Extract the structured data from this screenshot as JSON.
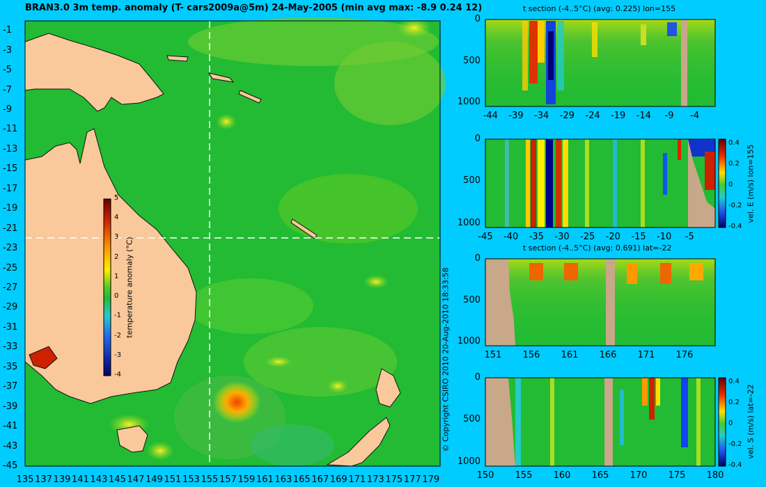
{
  "main_map": {
    "title": "BRAN3.0 3m temp. anomaly (T- cars2009a@5m) 24-May-2005 (min avg max: -8.9 0.24 12)",
    "x_ticks": [
      "135",
      "137",
      "139",
      "141",
      "143",
      "145",
      "147",
      "149",
      "151",
      "153",
      "155",
      "157",
      "159",
      "161",
      "163",
      "165",
      "167",
      "169",
      "171",
      "173",
      "175",
      "177",
      "179"
    ],
    "y_ticks": [
      "-1",
      "-3",
      "-5",
      "-7",
      "-9",
      "-11",
      "-13",
      "-15",
      "-17",
      "-19",
      "-21",
      "-23",
      "-25",
      "-27",
      "-29",
      "-31",
      "-33",
      "-35",
      "-37",
      "-39",
      "-41",
      "-43",
      "-45"
    ],
    "crosshair": {
      "lon": 155,
      "lat": -22
    },
    "colorbar": {
      "label": "temperature anomaly (°C)",
      "ticks": [
        "5",
        "4",
        "3",
        "2",
        "1",
        "0",
        "-1",
        "-2",
        "-3",
        "-4"
      ]
    }
  },
  "copyright": "© Copyright CSIRO 2010   20-Aug-2010 18:33:58",
  "panels": [
    {
      "title": "t section (-4..5°C) (avg: 0.225) lon=155",
      "x_ticks": [
        "-44",
        "-39",
        "-34",
        "-29",
        "-24",
        "-19",
        "-14",
        "-9",
        "-4"
      ],
      "y_ticks": [
        "0",
        "500",
        "1000"
      ]
    },
    {
      "title": "",
      "x_ticks": [
        "-45",
        "-40",
        "-35",
        "-30",
        "-25",
        "-20",
        "-15",
        "-10",
        "-5"
      ],
      "y_ticks": [
        "0",
        "500",
        "1000"
      ],
      "colorbar_label": "vel. E (m/s) lon=155",
      "colorbar_ticks": [
        "0.4",
        "0.2",
        "0",
        "-0.2",
        "-0.4"
      ]
    },
    {
      "title": "t section (-4..5°C) (avg: 0.691) lat=-22",
      "x_ticks": [
        "151",
        "156",
        "161",
        "166",
        "171",
        "176"
      ],
      "y_ticks": [
        "0",
        "500",
        "1000"
      ]
    },
    {
      "title": "",
      "x_ticks": [
        "150",
        "155",
        "160",
        "165",
        "170",
        "175",
        "180"
      ],
      "y_ticks": [
        "0",
        "500",
        "1000"
      ],
      "colorbar_label": "vel. S (m/s) lat=-22",
      "colorbar_ticks": [
        "0.4",
        "0.2",
        "0",
        "-0.2",
        "-0.4"
      ]
    }
  ],
  "colors": {
    "background": "#00ccff",
    "ocean_base": "#22bb33",
    "land": "#f9c89b",
    "section_land": "#c8a888"
  },
  "chart_data": [
    {
      "type": "heatmap",
      "title": "BRAN3.0 3m temp. anomaly (T- cars2009a@5m) 24-May-2005 (min avg max: -8.9 0.24 12)",
      "xlim": [
        135,
        180
      ],
      "ylim": [
        -45,
        0
      ],
      "colorbar_range": [
        -4,
        5
      ],
      "stats": {
        "min": -8.9,
        "avg": 0.24,
        "max": 12
      }
    },
    {
      "type": "heatmap",
      "title": "t section (-4..5°C) (avg: 0.225) lon=155",
      "xlim": [
        -45,
        0
      ],
      "ylim": [
        1050,
        0
      ],
      "avg": 0.225
    },
    {
      "type": "heatmap",
      "title": "",
      "colorbar_label": "vel. E (m/s) lon=155",
      "xlim": [
        -45,
        0
      ],
      "ylim": [
        1050,
        0
      ],
      "colorbar_range": [
        -0.4,
        0.45
      ]
    },
    {
      "type": "heatmap",
      "title": "t section (-4..5°C) (avg: 0.691) lat=-22",
      "xlim": [
        150,
        180
      ],
      "ylim": [
        1050,
        0
      ],
      "avg": 0.691
    },
    {
      "type": "heatmap",
      "title": "",
      "colorbar_label": "vel. S (m/s) lat=-22",
      "xlim": [
        150,
        180
      ],
      "ylim": [
        1050,
        0
      ],
      "colorbar_range": [
        -0.4,
        0.45
      ]
    }
  ]
}
